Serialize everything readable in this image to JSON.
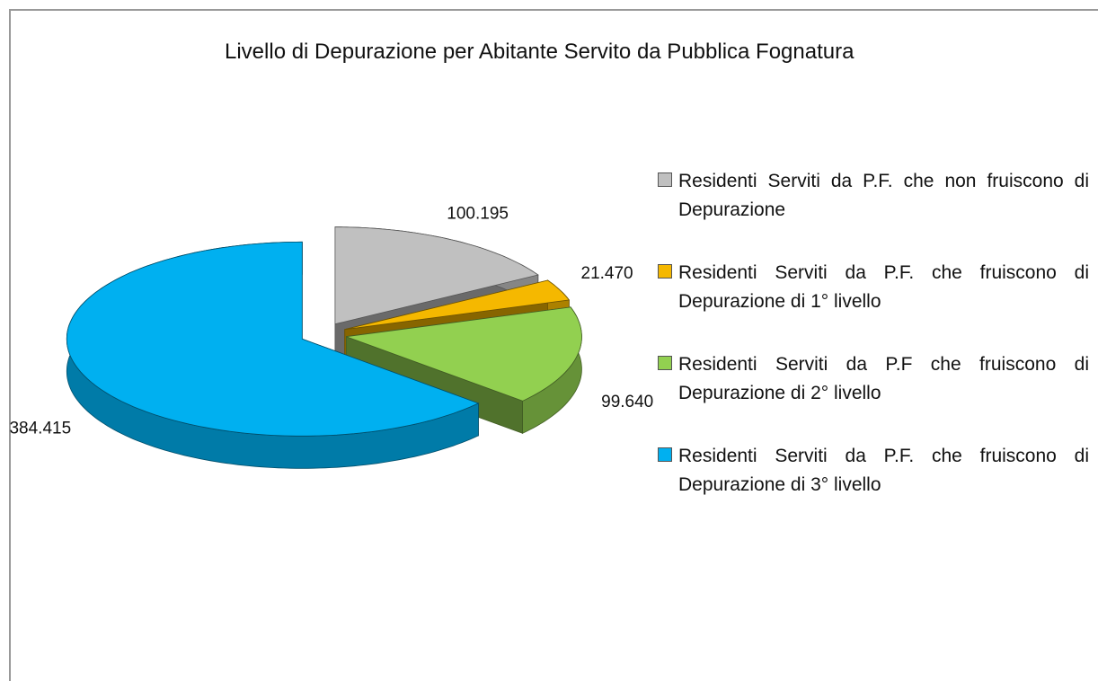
{
  "chart_data": {
    "type": "pie3d",
    "title": "Livello di Depurazione per Abitante Servito da Pubblica Fognatura",
    "categories": [
      "Residenti Serviti da P.F. che non fruiscono di Depurazione",
      "Residenti Serviti da P.F. che fruiscono di Depurazione di 1° livello",
      "Residenti Serviti da P.F che fruiscono di Depurazione di 2° livello",
      "Residenti Serviti da P.F. che fruiscono di Depurazione di 3° livello"
    ],
    "values": [
      100195,
      21470,
      99640,
      384415
    ],
    "value_labels": [
      "100.195",
      "21.470",
      "99.640",
      "384.415"
    ],
    "colors": [
      "#c0c0c0",
      "#f5b800",
      "#92d050",
      "#00b0f0"
    ],
    "legend": "right"
  }
}
